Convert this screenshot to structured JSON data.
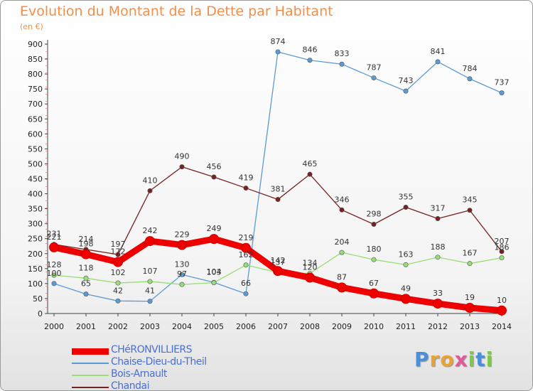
{
  "header": {
    "title": "Evolution du Montant de la Dette par Habitant",
    "subtitle": "(en €)"
  },
  "logo": {
    "letters": [
      "P",
      "r",
      "o",
      "x",
      "i",
      "t",
      "i"
    ],
    "colors": [
      "#4a8fd8",
      "#e8a23a",
      "#e8a23a",
      "#e05a9a",
      "#7ec84a",
      "#4a8fd8",
      "#7ec84a"
    ]
  },
  "chart_data": {
    "type": "line",
    "title": "Evolution du Montant de la Dette par Habitant",
    "ylabel": "(en €)",
    "xlabel": "",
    "x": [
      "2000",
      "2001",
      "2002",
      "2003",
      "2004",
      "2005",
      "2006",
      "2007",
      "2008",
      "2009",
      "2010",
      "2011",
      "2012",
      "2013",
      "2014"
    ],
    "ylim": [
      0,
      900
    ],
    "yticks": [
      0,
      50,
      100,
      150,
      200,
      250,
      300,
      350,
      400,
      450,
      500,
      550,
      600,
      650,
      700,
      750,
      800,
      850,
      900
    ],
    "grid": false,
    "legend_position": "bottom-left",
    "series": [
      {
        "name": "CHéRONVILLIERS",
        "color": "#ee0000",
        "values": [
          221,
          198,
          172,
          242,
          229,
          249,
          219,
          142,
          120,
          87,
          67,
          49,
          33,
          19,
          10
        ]
      },
      {
        "name": "Chaise-Dieu-du-Theil",
        "color": "#5b9bd5",
        "values": [
          100,
          65,
          42,
          41,
          130,
          104,
          66,
          874,
          846,
          833,
          787,
          743,
          841,
          784,
          737
        ]
      },
      {
        "name": "Bois-Arnault",
        "color": "#99dd77",
        "values": [
          128,
          118,
          102,
          107,
          97,
          103,
          162,
          137,
          134,
          204,
          180,
          163,
          188,
          167,
          186
        ]
      },
      {
        "name": "Chandai",
        "color": "#772222",
        "values": [
          231,
          214,
          197,
          410,
          490,
          456,
          419,
          381,
          465,
          346,
          298,
          355,
          317,
          345,
          207
        ]
      }
    ]
  }
}
